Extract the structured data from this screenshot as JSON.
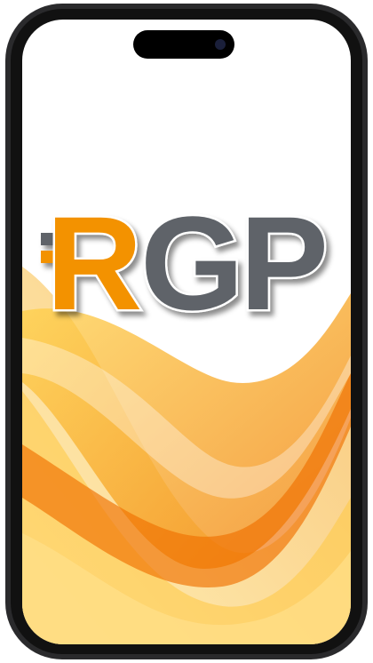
{
  "logo": {
    "letters": [
      "R",
      "G",
      "P"
    ]
  }
}
